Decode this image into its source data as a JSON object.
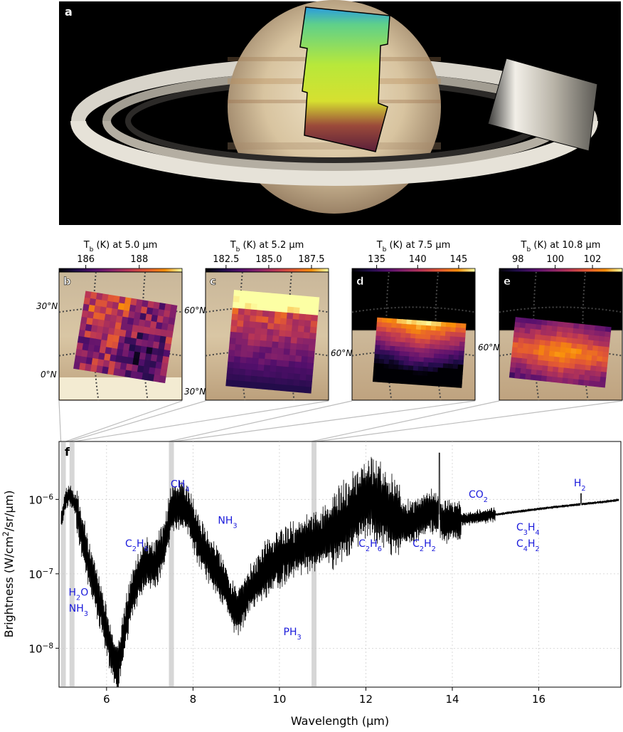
{
  "figure": {
    "panel_letters": [
      "a",
      "b",
      "c",
      "d",
      "e",
      "f"
    ]
  },
  "panel_a": {
    "letter": "a",
    "colors": {
      "background": "#000000",
      "planet": "#d9c9a8",
      "ring": "#e8e4da"
    }
  },
  "maps": [
    {
      "letter": "b",
      "title_prefix": "T",
      "title_sub": "b",
      "title_suffix": " (K) at 5.0 µm",
      "ticks": [
        "186",
        "188"
      ],
      "range": [
        185.0,
        189.6
      ],
      "tick_values": [
        186,
        188
      ],
      "grid_labels": [
        "30°N",
        "0°N"
      ]
    },
    {
      "letter": "c",
      "title_prefix": "T",
      "title_sub": "b",
      "title_suffix": " (K) at 5.2 µm",
      "ticks": [
        "182.5",
        "185.0",
        "187.5"
      ],
      "range": [
        181.3,
        188.5
      ],
      "tick_values": [
        182.5,
        185.0,
        187.5
      ],
      "grid_labels": [
        "60°N",
        "30°N"
      ]
    },
    {
      "letter": "d",
      "title_prefix": "T",
      "title_sub": "b",
      "title_suffix": " (K) at 7.5 µm",
      "ticks": [
        "135",
        "140",
        "145"
      ],
      "range": [
        132.0,
        147.0
      ],
      "tick_values": [
        135,
        140,
        145
      ],
      "grid_labels": [
        "60°N"
      ]
    },
    {
      "letter": "e",
      "title_prefix": "T",
      "title_sub": "b",
      "title_suffix": " (K) at 10.8 µm",
      "ticks": [
        "98",
        "100",
        "102"
      ],
      "range": [
        97.0,
        103.6
      ],
      "tick_values": [
        98,
        100,
        102
      ],
      "grid_labels": [
        "60°N"
      ]
    }
  ],
  "chart_data": {
    "type": "line",
    "panel_letter": "f",
    "xlabel": "Wavelength (µm)",
    "ylabel": "Brightness (W/cm²/sr/µm)",
    "ylabel_parts": {
      "pre": "Brightness (W/cm",
      "sup": "2",
      "post": "/sr/µm)"
    },
    "xlim": [
      4.9,
      17.9
    ],
    "ylim": [
      3e-09,
      6e-06
    ],
    "yscale": "log",
    "grid": true,
    "x_ticks": [
      6,
      8,
      10,
      12,
      14,
      16
    ],
    "x_tick_labels": [
      "6",
      "8",
      "10",
      "12",
      "14",
      "16"
    ],
    "y_ticks": [
      1e-08,
      1e-07,
      1e-06
    ],
    "y_tick_labels": [
      {
        "base": "10",
        "exp": "−8"
      },
      {
        "base": "10",
        "exp": "−7"
      },
      {
        "base": "10",
        "exp": "−6"
      }
    ],
    "highlight_bands": [
      5.0,
      5.2,
      7.5,
      10.8
    ],
    "envelope": [
      [
        4.95,
        5e-07
      ],
      [
        5.05,
        1e-06
      ],
      [
        5.15,
        1.15e-06
      ],
      [
        5.3,
        8e-07
      ],
      [
        5.5,
        2.2e-07
      ],
      [
        5.7,
        8e-08
      ],
      [
        5.9,
        3e-08
      ],
      [
        6.1,
        1e-08
      ],
      [
        6.25,
        5e-09
      ],
      [
        6.4,
        1.6e-08
      ],
      [
        6.6,
        6e-08
      ],
      [
        6.9,
        1.4e-07
      ],
      [
        7.1,
        1.3e-07
      ],
      [
        7.3,
        2.2e-07
      ],
      [
        7.5,
        7e-07
      ],
      [
        7.7,
        8.5e-07
      ],
      [
        7.9,
        7e-07
      ],
      [
        8.1,
        3e-07
      ],
      [
        8.4,
        1.5e-07
      ],
      [
        8.7,
        8e-08
      ],
      [
        9.0,
        3e-08
      ],
      [
        9.3,
        6e-08
      ],
      [
        9.6,
        1e-07
      ],
      [
        10.0,
        1.6e-07
      ],
      [
        10.4,
        2.2e-07
      ],
      [
        10.8,
        2.7e-07
      ],
      [
        11.2,
        3.6e-07
      ],
      [
        11.6,
        5.5e-07
      ],
      [
        11.9,
        9e-07
      ],
      [
        12.1,
        1.1e-06
      ],
      [
        12.4,
        8e-07
      ],
      [
        12.8,
        4.8e-07
      ],
      [
        13.1,
        5e-07
      ],
      [
        13.5,
        7e-07
      ],
      [
        13.8,
        5e-07
      ],
      [
        14.3,
        5.5e-07
      ],
      [
        14.8,
        6e-07
      ],
      [
        15.3,
        6.6e-07
      ],
      [
        15.8,
        7.2e-07
      ],
      [
        16.3,
        7.8e-07
      ],
      [
        16.8,
        8.4e-07
      ],
      [
        17.3,
        9e-07
      ],
      [
        17.85,
        9.8e-07
      ]
    ],
    "annotations": [
      {
        "parts": [
          [
            "H",
            ""
          ],
          [
            "2",
            "sub"
          ],
          [
            "O",
            ""
          ]
        ],
        "x": 5.35,
        "y": 5.1e-08
      },
      {
        "parts": [
          [
            "NH",
            ""
          ],
          [
            "3",
            "sub"
          ]
        ],
        "x": 5.35,
        "y": 3.1e-08
      },
      {
        "parts": [
          [
            "C",
            ""
          ],
          [
            "2",
            "sub"
          ],
          [
            "H",
            ""
          ],
          [
            "6",
            "sub"
          ]
        ],
        "x": 6.7,
        "y": 2.3e-07
      },
      {
        "parts": [
          [
            "CH",
            ""
          ],
          [
            "4",
            "sub"
          ]
        ],
        "x": 7.7,
        "y": 1.45e-06
      },
      {
        "parts": [
          [
            "NH",
            ""
          ],
          [
            "3",
            "sub"
          ]
        ],
        "x": 8.8,
        "y": 4.7e-07
      },
      {
        "parts": [
          [
            "PH",
            ""
          ],
          [
            "3",
            "sub"
          ]
        ],
        "x": 10.3,
        "y": 1.5e-08
      },
      {
        "parts": [
          [
            "C",
            ""
          ],
          [
            "2",
            "sub"
          ],
          [
            "H",
            ""
          ],
          [
            "6",
            "sub"
          ]
        ],
        "x": 12.1,
        "y": 2.3e-07
      },
      {
        "parts": [
          [
            "C",
            ""
          ],
          [
            "2",
            "sub"
          ],
          [
            "H",
            ""
          ],
          [
            "2",
            "sub"
          ]
        ],
        "x": 13.35,
        "y": 2.3e-07
      },
      {
        "parts": [
          [
            "CO",
            ""
          ],
          [
            "2",
            "sub"
          ]
        ],
        "x": 14.6,
        "y": 1.05e-06
      },
      {
        "parts": [
          [
            "C",
            ""
          ],
          [
            "3",
            "sub"
          ],
          [
            "H",
            ""
          ],
          [
            "4",
            "sub"
          ]
        ],
        "x": 15.75,
        "y": 3.8e-07
      },
      {
        "parts": [
          [
            "C",
            ""
          ],
          [
            "4",
            "sub"
          ],
          [
            "H",
            ""
          ],
          [
            "2",
            "sub"
          ]
        ],
        "x": 15.75,
        "y": 2.3e-07
      },
      {
        "parts": [
          [
            "H",
            ""
          ],
          [
            "2",
            "sub"
          ]
        ],
        "x": 16.95,
        "y": 1.5e-06
      }
    ]
  }
}
